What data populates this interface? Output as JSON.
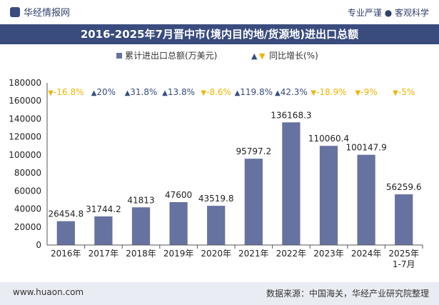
{
  "header": {
    "brand": "华经情报网",
    "tagline": "专业严谨 ● 客观科学"
  },
  "footer": {
    "url": "www.huaon.com",
    "source": "数据来源：中国海关，华经产业研究院整理"
  },
  "colors": {
    "bar": "#6673a0",
    "growth_up": "#3a4c7e",
    "growth_down": "#f0b400",
    "title_bg": "#3a4c7e"
  },
  "chart_data": {
    "type": "bar",
    "title": "2016-2025年7月晋中市(境内目的地/货源地)进出口总额",
    "categories": [
      "2016年",
      "2017年",
      "2018年",
      "2019年",
      "2020年",
      "2021年",
      "2022年",
      "2023年",
      "2024年",
      "2025年\n1-7月"
    ],
    "series": [
      {
        "name": "累计进出口总额(万美元)",
        "values": [
          26454.8,
          31744.2,
          41813,
          47600,
          43519.8,
          95797.2,
          136168.3,
          110060.4,
          100147.9,
          56259.6
        ],
        "labels": [
          "26454.8",
          "31744.2",
          "41813",
          "47600",
          "43519.8",
          "95797.2",
          "136168.3",
          "110060.4",
          "100147.9",
          "56259.6"
        ]
      },
      {
        "name": "同比增长(%)",
        "values": [
          -16.8,
          20,
          31.8,
          13.8,
          -8.6,
          119.8,
          42.3,
          -18.9,
          -9,
          -5
        ],
        "labels": [
          "-16.8%",
          "20%",
          "31.8%",
          "13.8%",
          "-8.6%",
          "119.8%",
          "42.3%",
          "-18.9%",
          "-9%",
          "-5%"
        ]
      }
    ],
    "ylim": [
      0,
      180000
    ],
    "yticks": [
      0,
      20000,
      40000,
      60000,
      80000,
      100000,
      120000,
      140000,
      160000,
      180000
    ],
    "legend": [
      "累计进出口总额(万美元)",
      "同比增长(%)"
    ]
  }
}
